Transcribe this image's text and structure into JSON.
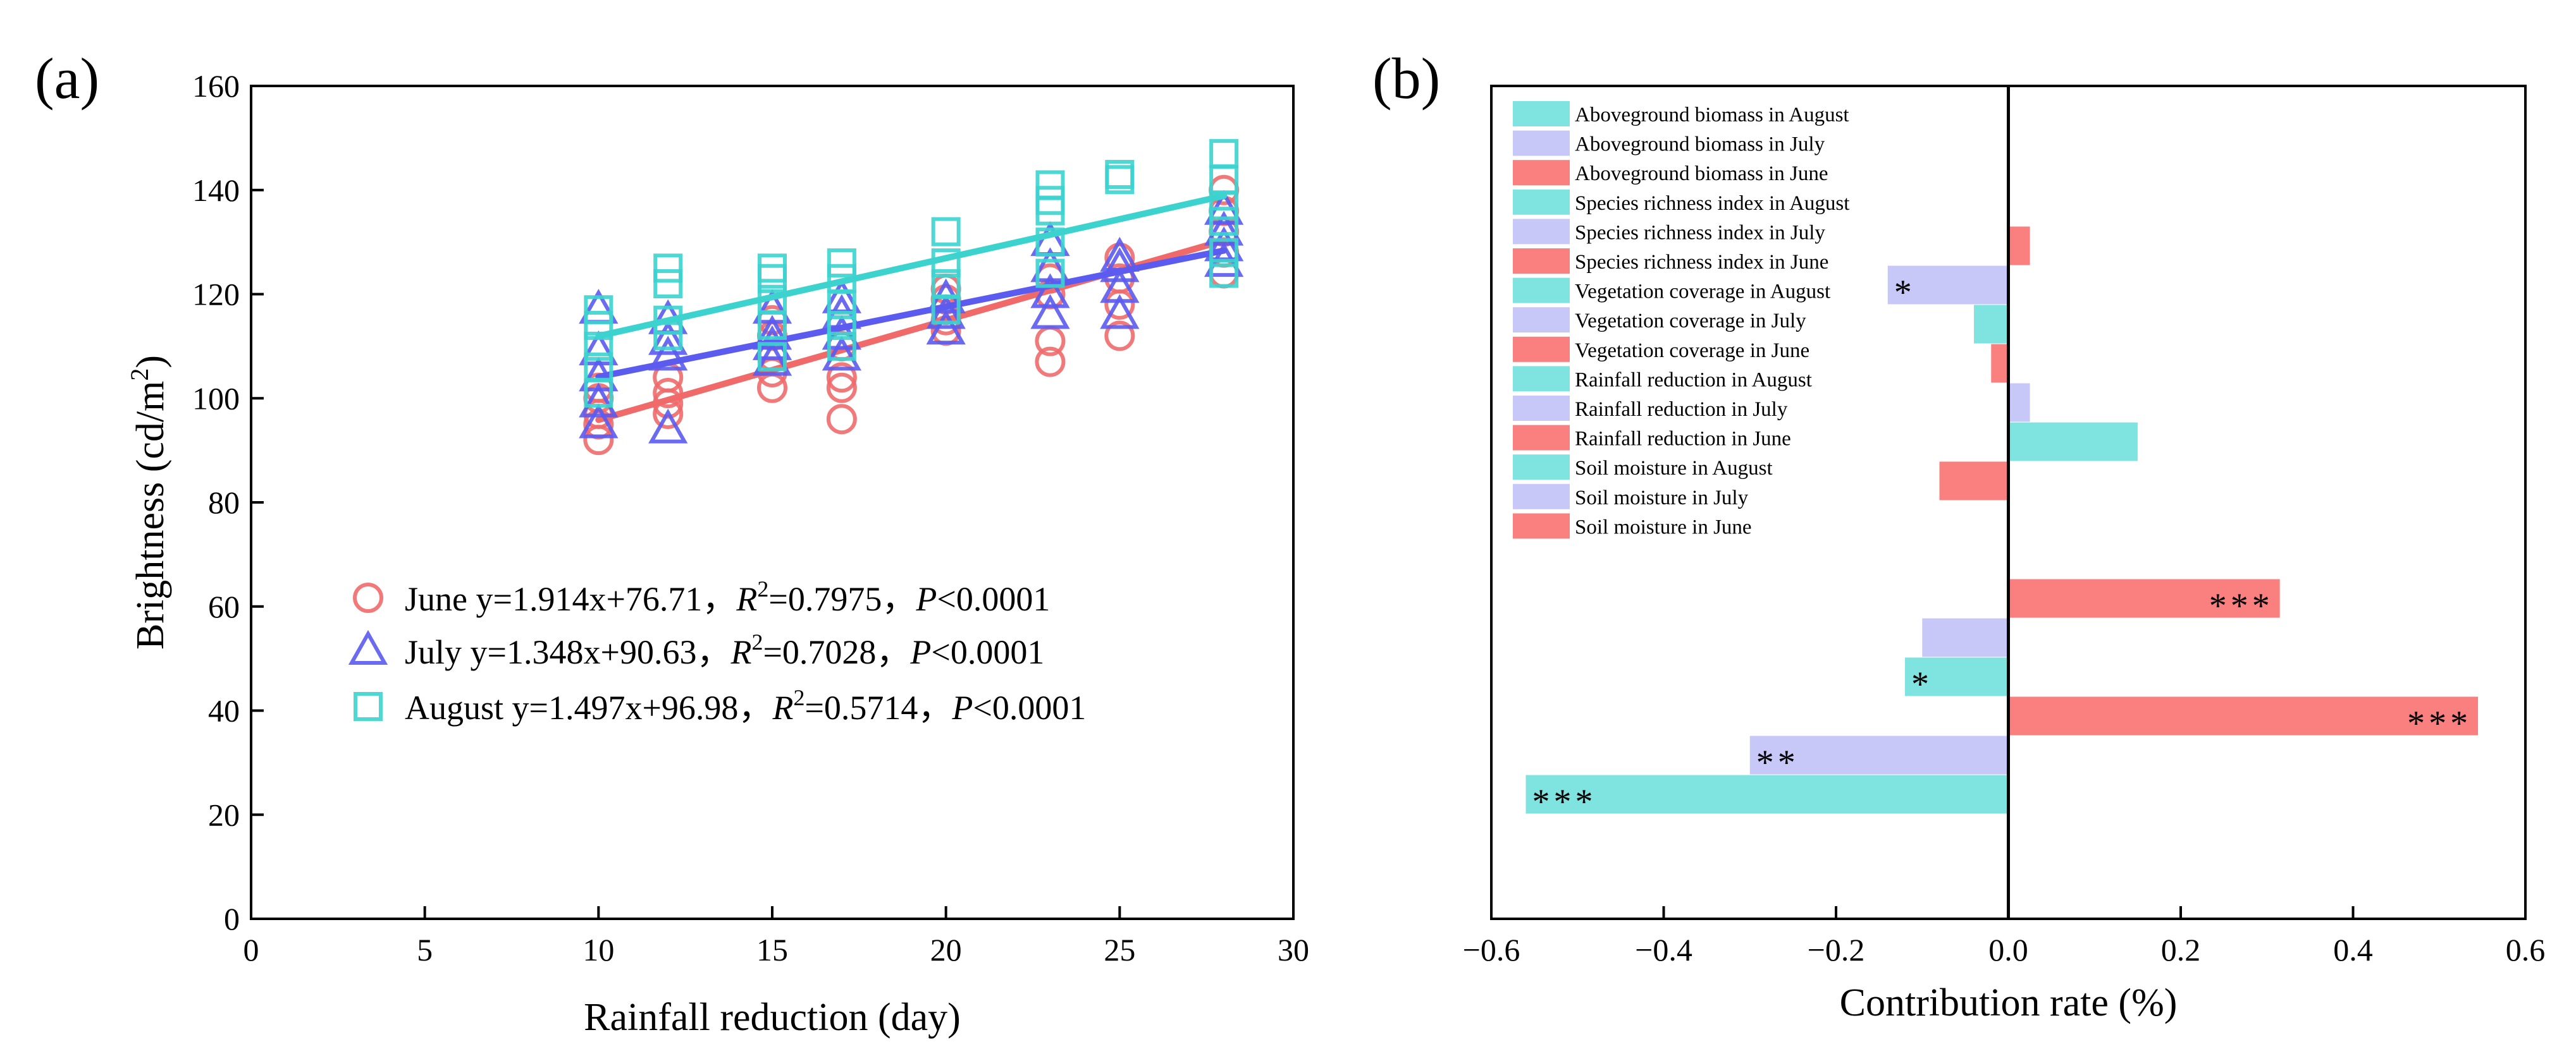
{
  "panels": {
    "a_label": "(a)",
    "b_label": "(b)"
  },
  "colors": {
    "june": "#f06a6a",
    "july": "#5b5bf0",
    "august": "#3cd3cf",
    "bar_june": "#fa8080",
    "bar_july": "#c8c8f8",
    "bar_august": "#7fe3df"
  },
  "chart_data": [
    {
      "type": "scatter",
      "xlabel": "Rainfall reduction (day)",
      "ylabel_main": "Brightness (cd/m",
      "ylabel_sup": "2",
      "ylabel_close": ")",
      "xlim": [
        0,
        30
      ],
      "ylim": [
        0,
        160
      ],
      "xticks": [
        0,
        5,
        10,
        15,
        20,
        25,
        30
      ],
      "yticks": [
        0,
        20,
        40,
        60,
        80,
        100,
        120,
        140,
        160
      ],
      "grid": false,
      "legend_position": "lower-center",
      "series": [
        {
          "name": "June",
          "marker": "circle",
          "legend": {
            "name": "June",
            "eq": " y=1.914x+76.71，",
            "r2_label": "R",
            "r2_sup": "2",
            "r2_value": "=0.7975，",
            "p_label": "P",
            "p_value": "<0.0001"
          },
          "fit": {
            "slope": 1.914,
            "intercept": 76.71,
            "x_range": [
              10,
              28
            ]
          },
          "points": [
            [
              10,
              92
            ],
            [
              10,
              95
            ],
            [
              10,
              97
            ],
            [
              10,
              100
            ],
            [
              10,
              102
            ],
            [
              12,
              97
            ],
            [
              12,
              99
            ],
            [
              12,
              101
            ],
            [
              12,
              104
            ],
            [
              15,
              102
            ],
            [
              15,
              105
            ],
            [
              15,
              108
            ],
            [
              15,
              112
            ],
            [
              15,
              115
            ],
            [
              17,
              96
            ],
            [
              17,
              102
            ],
            [
              17,
              104
            ],
            [
              17,
              110
            ],
            [
              20,
              113
            ],
            [
              20,
              115
            ],
            [
              20,
              117
            ],
            [
              20,
              119
            ],
            [
              20,
              121
            ],
            [
              23,
              107
            ],
            [
              23,
              111
            ],
            [
              23,
              120
            ],
            [
              23,
              123
            ],
            [
              25,
              112
            ],
            [
              25,
              118
            ],
            [
              25,
              123
            ],
            [
              25,
              127
            ],
            [
              28,
              124
            ],
            [
              28,
              128
            ],
            [
              28,
              132
            ],
            [
              28,
              136
            ],
            [
              28,
              140
            ]
          ]
        },
        {
          "name": "July",
          "marker": "triangle",
          "legend": {
            "name": "July",
            "eq": " y=1.348x+90.63，",
            "r2_label": "R",
            "r2_sup": "2",
            "r2_value": "=0.7028，",
            "p_label": "P",
            "p_value": "<0.0001"
          },
          "fit": {
            "slope": 1.348,
            "intercept": 90.63,
            "x_range": [
              10,
              28
            ]
          },
          "points": [
            [
              10,
              95
            ],
            [
              10,
              99
            ],
            [
              10,
              104
            ],
            [
              10,
              109
            ],
            [
              10,
              117
            ],
            [
              12,
              94
            ],
            [
              12,
              108
            ],
            [
              12,
              111
            ],
            [
              12,
              115
            ],
            [
              15,
              107
            ],
            [
              15,
              110
            ],
            [
              15,
              112
            ],
            [
              15,
              117
            ],
            [
              17,
              108
            ],
            [
              17,
              112
            ],
            [
              17,
              116
            ],
            [
              17,
              119
            ],
            [
              20,
              113
            ],
            [
              20,
              116
            ],
            [
              20,
              119
            ],
            [
              23,
              116
            ],
            [
              23,
              120
            ],
            [
              23,
              125
            ],
            [
              23,
              130
            ],
            [
              25,
              116
            ],
            [
              25,
              121
            ],
            [
              25,
              125
            ],
            [
              25,
              127
            ],
            [
              28,
              126
            ],
            [
              28,
              129
            ],
            [
              28,
              132
            ],
            [
              28,
              136
            ]
          ]
        },
        {
          "name": "August",
          "marker": "square",
          "legend": {
            "name": "August",
            "eq": " y=1.497x+96.98，",
            "r2_label": "R",
            "r2_sup": "2",
            "r2_value": "=0.5714，",
            "p_label": "P",
            "p_value": "<0.0001"
          },
          "fit": {
            "slope": 1.497,
            "intercept": 96.98,
            "x_range": [
              10,
              28
            ]
          },
          "points": [
            [
              10,
              101
            ],
            [
              10,
              106
            ],
            [
              10,
              110
            ],
            [
              10,
              114
            ],
            [
              10,
              117
            ],
            [
              12,
              112
            ],
            [
              12,
              115
            ],
            [
              12,
              122
            ],
            [
              12,
              125
            ],
            [
              15,
              108
            ],
            [
              15,
              114
            ],
            [
              15,
              119
            ],
            [
              15,
              123
            ],
            [
              15,
              125
            ],
            [
              17,
              110
            ],
            [
              17,
              114
            ],
            [
              17,
              118
            ],
            [
              17,
              123
            ],
            [
              17,
              126
            ],
            [
              20,
              117
            ],
            [
              20,
              122
            ],
            [
              20,
              126
            ],
            [
              20,
              132
            ],
            [
              23,
              124
            ],
            [
              23,
              130
            ],
            [
              23,
              136
            ],
            [
              23,
              138
            ],
            [
              23,
              141
            ],
            [
              25,
              142
            ],
            [
              25,
              143
            ],
            [
              28,
              124
            ],
            [
              28,
              128
            ],
            [
              28,
              134
            ],
            [
              28,
              137
            ],
            [
              28,
              142
            ],
            [
              28,
              147
            ]
          ]
        }
      ]
    },
    {
      "type": "bar",
      "orientation": "horizontal",
      "xlabel": "Contribution rate (%)",
      "xlim": [
        -0.6,
        0.6
      ],
      "xticks": [
        -0.6,
        -0.4,
        -0.2,
        0.0,
        0.2,
        0.4,
        0.6
      ],
      "xtick_labels": [
        "−0.6",
        "−0.4",
        "−0.2",
        "0.0",
        "0.2",
        "0.4",
        "0.6"
      ],
      "legend_position": "top-left",
      "categories": [
        "Aboveground biomass in August",
        "Aboveground biomass in July",
        "Aboveground biomass in June",
        "Species richness index in August",
        "Species richness index in July",
        "Species richness index in June",
        "Vegetation coverage in August",
        "Vegetation coverage in July",
        "Vegetation coverage in June",
        "Rainfall reduction in August",
        "Rainfall reduction in July",
        "Rainfall reduction in June",
        "Soil moisture in August",
        "Soil moisture in July",
        "Soil moisture in June"
      ],
      "category_months": [
        "august",
        "july",
        "june",
        "august",
        "july",
        "june",
        "august",
        "july",
        "june",
        "august",
        "july",
        "june",
        "august",
        "july",
        "june"
      ],
      "values": [
        -0.56,
        -0.3,
        0.545,
        -0.12,
        -0.1,
        0.315,
        0.0,
        0.0,
        -0.08,
        0.15,
        0.025,
        -0.02,
        -0.04,
        -0.14,
        0.025
      ],
      "annotations": [
        "***",
        "**",
        "***",
        "*",
        "",
        "***",
        "",
        "",
        "",
        "",
        "",
        "",
        "",
        "*",
        ""
      ]
    }
  ]
}
